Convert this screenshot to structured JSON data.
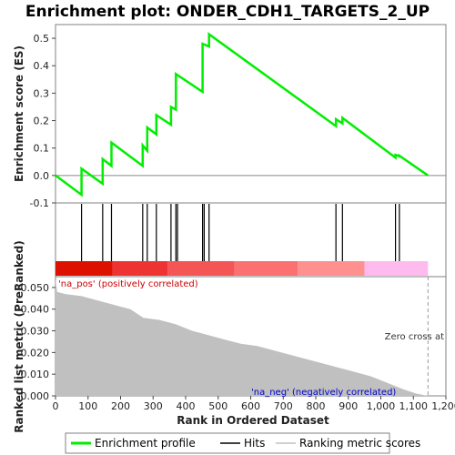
{
  "title": "Enrichment plot: ONDER_CDH1_TARGETS_2_UP",
  "colors": {
    "enrichment_line": "#00ee00",
    "hits": "#000000",
    "ranking_fill": "#c0c0c0",
    "pos_label": "#cc0000",
    "neg_label": "#0000cc",
    "zero_line": "#888888"
  },
  "chart_data": [
    {
      "type": "line",
      "name": "enrichment-score-panel",
      "ylabel": "Enrichment score (ES)",
      "ylim": [
        -0.1,
        0.55
      ],
      "yticks": [
        "-0.1",
        "0.0",
        "0.1",
        "0.2",
        "0.3",
        "0.4",
        "0.5"
      ],
      "ytick_values": [
        -0.1,
        0.0,
        0.1,
        0.2,
        0.3,
        0.4,
        0.5
      ],
      "xlim": [
        0,
        1200
      ],
      "grid": false,
      "series": [
        {
          "name": "Enrichment profile",
          "x": [
            0,
            80,
            80,
            145,
            145,
            172,
            172,
            268,
            268,
            282,
            282,
            310,
            310,
            355,
            355,
            370,
            370,
            452,
            452,
            472,
            472,
            862,
            862,
            882,
            882,
            1045,
            1045,
            1057,
            1057,
            1145
          ],
          "y": [
            0.0,
            -0.07,
            0.025,
            -0.03,
            0.06,
            0.035,
            0.12,
            0.035,
            0.11,
            0.09,
            0.175,
            0.15,
            0.22,
            0.185,
            0.25,
            0.24,
            0.37,
            0.305,
            0.48,
            0.47,
            0.515,
            0.18,
            0.205,
            0.19,
            0.21,
            0.065,
            0.075,
            0.07,
            0.072,
            0.0
          ]
        }
      ]
    },
    {
      "type": "scatter",
      "name": "hits-panel",
      "series": [
        {
          "name": "Hits",
          "x": [
            80,
            145,
            172,
            268,
            282,
            310,
            355,
            370,
            375,
            452,
            457,
            472,
            862,
            882,
            1045,
            1057
          ]
        }
      ]
    },
    {
      "type": "heatmap",
      "name": "rank-colorbar",
      "segments": [
        {
          "from": 0,
          "to": 175,
          "color": "#dd1100"
        },
        {
          "from": 175,
          "to": 345,
          "color": "#ee3333"
        },
        {
          "from": 345,
          "to": 550,
          "color": "#f45555"
        },
        {
          "from": 550,
          "to": 745,
          "color": "#fb7070"
        },
        {
          "from": 745,
          "to": 950,
          "color": "#ff9090"
        },
        {
          "from": 950,
          "to": 1145,
          "color": "#ffbbee"
        }
      ]
    },
    {
      "type": "area",
      "name": "ranked-list-panel",
      "xlabel": "Rank in Ordered Dataset",
      "ylabel": "Ranked list metric (PreRanked)",
      "ylim": [
        0,
        0.055
      ],
      "yticks": [
        "0.000",
        "0.010",
        "0.020",
        "0.030",
        "0.040",
        "0.050"
      ],
      "ytick_values": [
        0,
        0.01,
        0.02,
        0.03,
        0.04,
        0.05
      ],
      "xlim": [
        0,
        1200
      ],
      "xticks": [
        "0",
        "100",
        "200",
        "300",
        "400",
        "500",
        "600",
        "700",
        "800",
        "900",
        "1,000",
        "1,100",
        "1,200"
      ],
      "xtick_values": [
        0,
        100,
        200,
        300,
        400,
        500,
        600,
        700,
        800,
        900,
        1000,
        1100,
        1200
      ],
      "series": [
        {
          "name": "Ranking metric scores",
          "x": [
            0,
            5,
            30,
            80,
            130,
            180,
            230,
            270,
            320,
            370,
            420,
            470,
            520,
            570,
            620,
            670,
            720,
            770,
            820,
            870,
            920,
            970,
            1020,
            1070,
            1110,
            1145
          ],
          "y": [
            0.054,
            0.048,
            0.047,
            0.046,
            0.044,
            0.042,
            0.04,
            0.036,
            0.035,
            0.033,
            0.03,
            0.028,
            0.026,
            0.024,
            0.023,
            0.021,
            0.019,
            0.017,
            0.015,
            0.013,
            0.011,
            0.009,
            0.006,
            0.003,
            0.001,
            0.0
          ]
        }
      ],
      "annotations": {
        "pos": "'na_pos' (positively correlated)",
        "neg": "'na_neg' (negatively correlated)",
        "zero_cross": "Zero cross at"
      },
      "zero_cross_x": 1145
    }
  ],
  "legend": {
    "items": [
      {
        "label": "Enrichment profile",
        "kind": "green-line"
      },
      {
        "label": "Hits",
        "kind": "black-line"
      },
      {
        "label": "Ranking metric scores",
        "kind": "gray-line"
      }
    ]
  }
}
